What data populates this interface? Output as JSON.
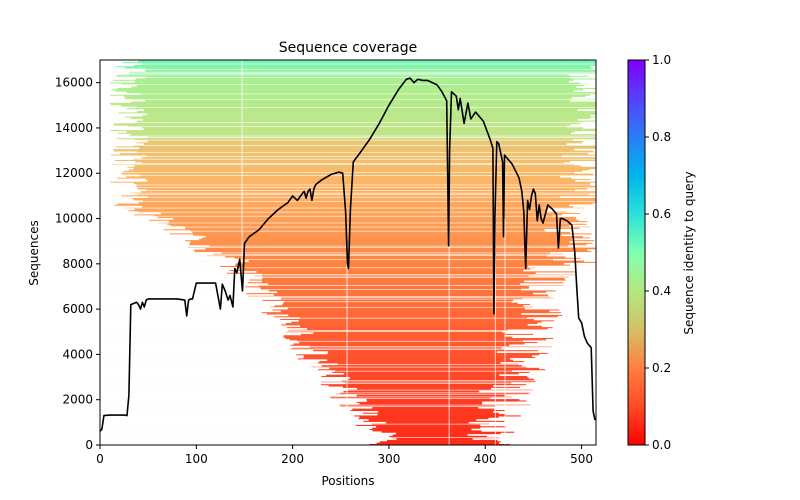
{
  "chart_data": {
    "type": "heatmap",
    "title": "Sequence coverage",
    "xlabel": "Positions",
    "ylabel": "Sequences",
    "xlim": [
      0,
      515
    ],
    "ylim": [
      0,
      17000
    ],
    "xticks": [
      0,
      100,
      200,
      300,
      400,
      500
    ],
    "yticks": [
      0,
      2000,
      4000,
      6000,
      8000,
      10000,
      12000,
      14000,
      16000
    ],
    "grid": false,
    "colorbar": {
      "label": "Sequence identity to query",
      "range": [
        0.0,
        1.0
      ],
      "ticks": [
        "0.0",
        "0.2",
        "0.4",
        "0.6",
        "0.8",
        "1.0"
      ],
      "colormap": "rainbow_r",
      "stops": [
        "#ff0000",
        "#ff7f40",
        "#c0e080",
        "#80ffb4",
        "#00b4ec",
        "#7f00ff"
      ]
    },
    "identity_bands": [
      {
        "from_seq": 0,
        "to_seq": 2000,
        "identity": 0.05
      },
      {
        "from_seq": 2000,
        "to_seq": 6000,
        "identity": 0.1
      },
      {
        "from_seq": 6000,
        "to_seq": 10000,
        "identity": 0.17
      },
      {
        "from_seq": 10000,
        "to_seq": 13400,
        "identity": 0.25
      },
      {
        "from_seq": 13400,
        "to_seq": 16500,
        "identity": 0.38
      },
      {
        "from_seq": 16500,
        "to_seq": 17000,
        "identity": 0.5
      }
    ],
    "coverage_line": {
      "name": "coverage",
      "color": "#000000",
      "x": [
        0,
        2,
        4,
        10,
        20,
        26,
        28,
        30,
        32,
        38,
        40,
        42,
        44,
        46,
        48,
        50,
        60,
        80,
        88,
        90,
        92,
        94,
        96,
        100,
        110,
        120,
        125,
        127,
        130,
        133,
        135,
        138,
        140,
        142,
        145,
        148,
        150,
        155,
        165,
        175,
        185,
        195,
        200,
        205,
        210,
        212,
        214,
        216,
        218,
        220,
        222,
        224,
        230,
        240,
        248,
        252,
        255,
        257,
        258,
        260,
        263,
        270,
        280,
        290,
        300,
        310,
        318,
        322,
        326,
        330,
        335,
        340,
        345,
        350,
        355,
        360,
        362,
        363,
        365,
        370,
        372,
        374,
        378,
        382,
        385,
        390,
        398,
        405,
        408,
        409,
        410,
        412,
        414,
        418,
        419,
        420,
        422,
        428,
        435,
        438,
        440,
        442,
        444,
        446,
        448,
        450,
        452,
        454,
        456,
        458,
        460,
        465,
        470,
        472,
        474,
        476,
        478,
        480,
        485,
        490,
        493,
        495,
        497,
        500,
        503,
        506,
        510,
        512,
        514
      ],
      "y": [
        600,
        700,
        1300,
        1320,
        1320,
        1320,
        1300,
        2200,
        6200,
        6300,
        6200,
        6000,
        6300,
        6100,
        6400,
        6450,
        6450,
        6450,
        6400,
        5700,
        6400,
        6450,
        6450,
        7150,
        7150,
        7150,
        6000,
        7100,
        6800,
        6400,
        6600,
        6100,
        7800,
        7600,
        8200,
        6800,
        8900,
        9200,
        9500,
        10000,
        10400,
        10700,
        11000,
        10800,
        11100,
        11200,
        10900,
        11200,
        11300,
        10800,
        11300,
        11500,
        11700,
        11950,
        12050,
        12000,
        10300,
        8000,
        7800,
        10400,
        12500,
        12900,
        13500,
        14200,
        15000,
        15700,
        16150,
        16200,
        16000,
        16150,
        16100,
        16100,
        16000,
        15900,
        15600,
        15200,
        8800,
        13000,
        15600,
        15400,
        14800,
        15300,
        14200,
        15100,
        14400,
        14700,
        14300,
        13500,
        13100,
        5800,
        10000,
        13400,
        13300,
        12500,
        9200,
        12800,
        12700,
        12400,
        11800,
        11200,
        10300,
        7800,
        10800,
        10400,
        11000,
        11300,
        11100,
        9900,
        10600,
        10000,
        9800,
        10600,
        10400,
        10300,
        10200,
        8700,
        10000,
        10000,
        9900,
        9700,
        8500,
        7000,
        5600,
        5400,
        4800,
        4500,
        4300,
        1500,
        1100
      ]
    }
  }
}
